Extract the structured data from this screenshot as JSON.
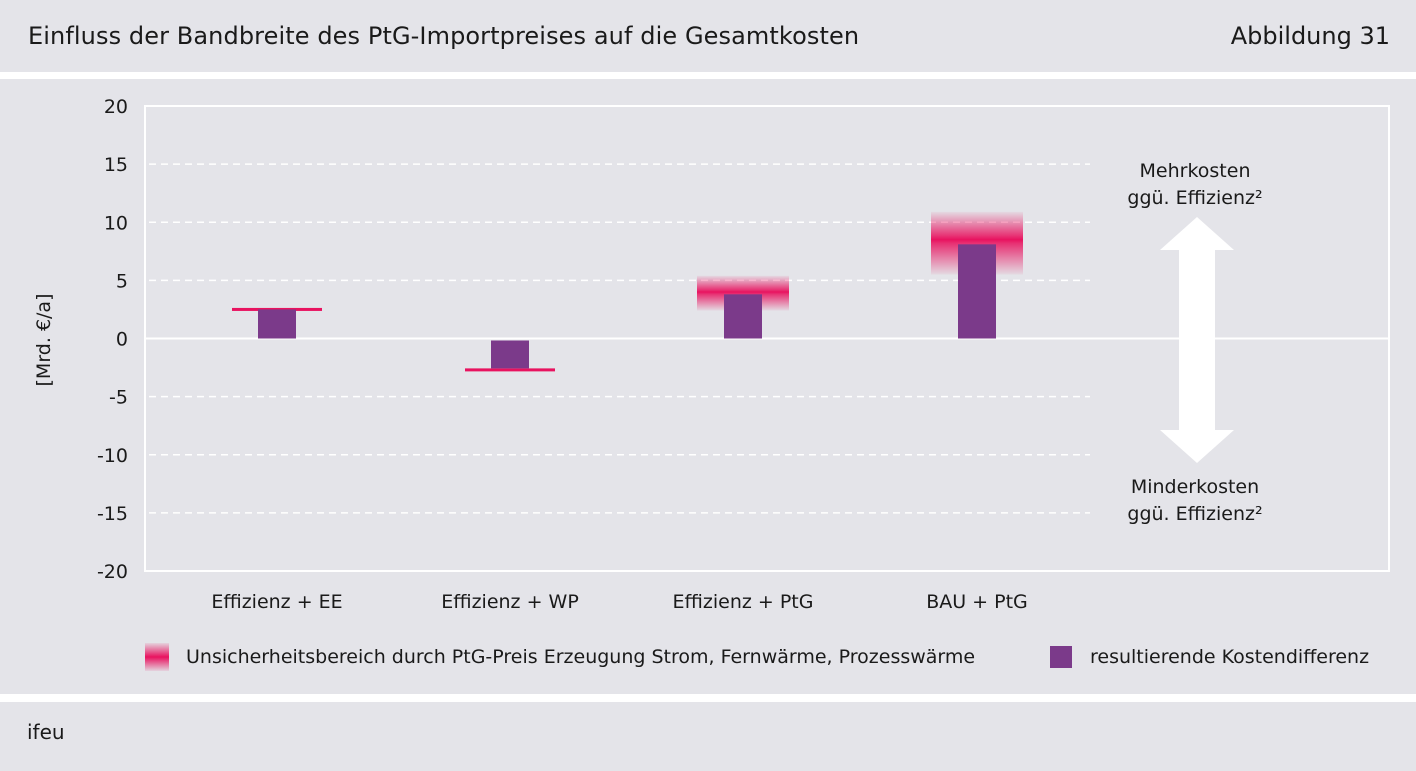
{
  "header": {
    "title": "Einfluss der Bandbreite des PtG-Importpreises auf die Gesamtkosten",
    "figure_number": "Abbildung 31"
  },
  "footer": {
    "source": "ifeu"
  },
  "colors": {
    "bar": "#7b3a8a",
    "uncertainty": "#e8125f",
    "panel": "#e4e4e9",
    "arrow": "#ffffff"
  },
  "chart_data": {
    "type": "bar",
    "title": "Einfluss der Bandbreite des PtG-Importpreises auf die Gesamtkosten",
    "ylabel": "[Mrd. €/a]",
    "xlabel": "",
    "ylim": [
      -20,
      20
    ],
    "yticks": [
      20,
      15,
      10,
      5,
      0,
      -5,
      -10,
      -15,
      -20
    ],
    "ytick_labels": [
      "20",
      "15",
      "10",
      "5",
      "0",
      "-5",
      "-10",
      "-15",
      "-20"
    ],
    "grid": "horizontal dashed",
    "categories": [
      "Effizienz + EE",
      "Effizienz + WP",
      "Effizienz + PtG",
      "BAU + PtG"
    ],
    "series": [
      {
        "name": "resultierende Kostendifferenz",
        "values": [
          2.5,
          -2.7,
          3.8,
          8.1
        ]
      },
      {
        "name": "Unsicherheitsbereich durch PtG-Preis Erzeugung Strom, Fernwärme, Prozesswärme",
        "center": [
          2.5,
          -2.7,
          4.0,
          8.5
        ],
        "low": [
          2.5,
          -2.7,
          2.4,
          5.5
        ],
        "high": [
          2.5,
          -2.7,
          5.4,
          10.9
        ]
      }
    ],
    "legend": {
      "position": "bottom",
      "entries": [
        "Unsicherheitsbereich durch PtG-Preis Erzeugung Strom, Fernwärme, Prozesswärme",
        "resultierende Kostendifferenz"
      ]
    },
    "annotations": {
      "upper_line1": "Mehrkosten",
      "upper_line2": "ggü. Effizienz²",
      "lower_line1": "Minderkosten",
      "lower_line2": "ggü. Effizienz²"
    }
  }
}
